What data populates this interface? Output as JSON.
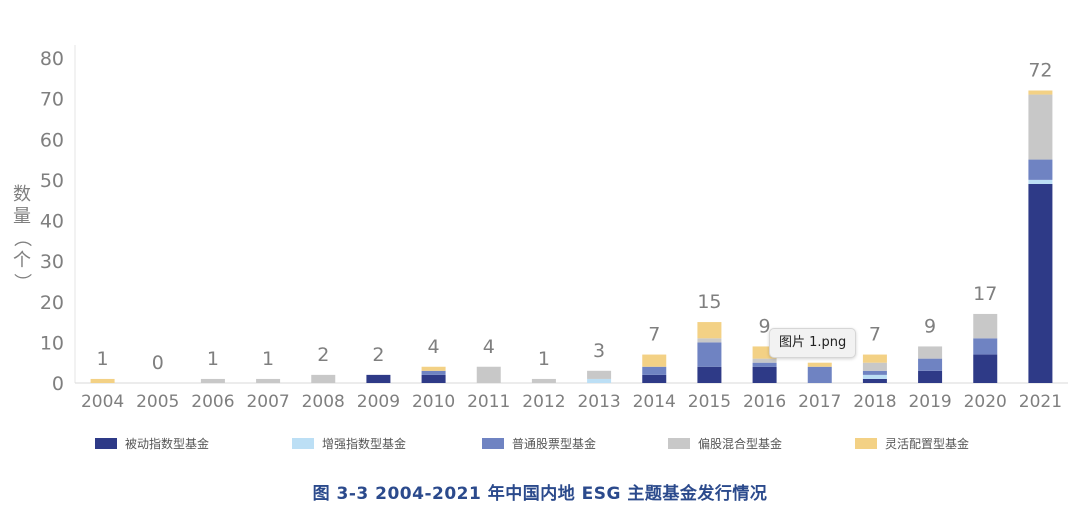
{
  "tooltip": "图片 1.png",
  "chart_data": {
    "type": "bar",
    "stacked": true,
    "caption": "图 3-3   2004-2021 年中国内地 ESG 主题基金发行情况",
    "ylabel": "数量（个）",
    "ylim": [
      0,
      80
    ],
    "yticks": [
      0,
      10,
      20,
      30,
      40,
      50,
      60,
      70,
      80
    ],
    "categories": [
      "2004",
      "2005",
      "2006",
      "2007",
      "2008",
      "2009",
      "2010",
      "2011",
      "2012",
      "2013",
      "2014",
      "2015",
      "2016",
      "2017",
      "2018",
      "2019",
      "2020",
      "2021"
    ],
    "totals": [
      "1",
      "0",
      "1",
      "1",
      "2",
      "2",
      "4",
      "4",
      "1",
      "3",
      "7",
      "15",
      "9",
      "",
      "7",
      "9",
      "17",
      "72"
    ],
    "legend_position": "bottom",
    "series": [
      {
        "name": "被动指数型基金",
        "color": "#2e3a87",
        "values": [
          0,
          0,
          0,
          0,
          0,
          2,
          2,
          0,
          0,
          0,
          2,
          4,
          4,
          0,
          1,
          3,
          7,
          49
        ]
      },
      {
        "name": "增强指数型基金",
        "color": "#bcdff5",
        "values": [
          0,
          0,
          0,
          0,
          0,
          0,
          0,
          0,
          0,
          1,
          0,
          0,
          0,
          0,
          1,
          0,
          0,
          1
        ]
      },
      {
        "name": "普通股票型基金",
        "color": "#6f83c2",
        "values": [
          0,
          0,
          0,
          0,
          0,
          0,
          1,
          0,
          0,
          0,
          2,
          6,
          1,
          4,
          1,
          3,
          4,
          5
        ]
      },
      {
        "name": "偏股混合型基金",
        "color": "#c8c8c8",
        "values": [
          0,
          0,
          1,
          1,
          2,
          0,
          0,
          4,
          1,
          2,
          0,
          1,
          1,
          0,
          2,
          3,
          6,
          16
        ]
      },
      {
        "name": "灵活配置型基金",
        "color": "#f3d185",
        "values": [
          1,
          0,
          0,
          0,
          0,
          0,
          1,
          0,
          0,
          0,
          3,
          4,
          3,
          1,
          2,
          0,
          0,
          1
        ]
      }
    ]
  }
}
